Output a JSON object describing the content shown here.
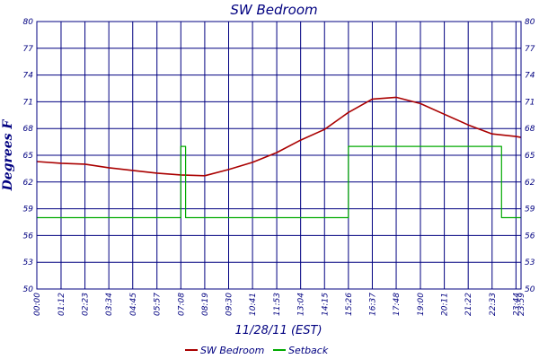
{
  "chart_data": {
    "type": "line",
    "title": "SW Bedroom",
    "xlabel": "11/28/11 (EST)",
    "ylabel": "Degrees F",
    "ylim": [
      50,
      80
    ],
    "y_ticks": [
      "50",
      "53",
      "56",
      "59",
      "62",
      "65",
      "68",
      "71",
      "74",
      "77",
      "80"
    ],
    "x_ticks": [
      "00:00",
      "01:12",
      "02:23",
      "03:34",
      "04:45",
      "05:57",
      "07:08",
      "08:19",
      "09:30",
      "10:41",
      "11:53",
      "13:04",
      "14:15",
      "15:26",
      "16:37",
      "17:48",
      "19:00",
      "20:11",
      "21:22",
      "22:33",
      "23:44",
      "23:59"
    ],
    "grid": true,
    "legend_position": "bottom",
    "series": [
      {
        "name": "SW Bedroom",
        "color": "#aa0000",
        "x": [
          "00:00",
          "01:12",
          "02:23",
          "03:34",
          "04:45",
          "05:57",
          "07:08",
          "08:19",
          "09:30",
          "10:41",
          "11:53",
          "13:04",
          "14:15",
          "15:26",
          "16:37",
          "17:48",
          "19:00",
          "20:11",
          "21:22",
          "22:33",
          "23:44",
          "23:59"
        ],
        "values": [
          64.3,
          64.1,
          64.0,
          63.6,
          63.3,
          63.0,
          62.8,
          62.7,
          63.4,
          64.2,
          65.3,
          66.7,
          67.9,
          69.8,
          71.3,
          71.5,
          70.8,
          69.6,
          68.4,
          67.4,
          67.1,
          67.0
        ]
      },
      {
        "name": "Setback",
        "color": "#00aa00",
        "x": [
          "00:00",
          "07:08",
          "07:08",
          "07:22",
          "07:22",
          "15:26",
          "15:26",
          "23:01",
          "23:01",
          "23:59"
        ],
        "values": [
          58,
          58,
          66,
          66,
          58,
          58,
          66,
          66,
          58,
          58
        ]
      }
    ]
  }
}
